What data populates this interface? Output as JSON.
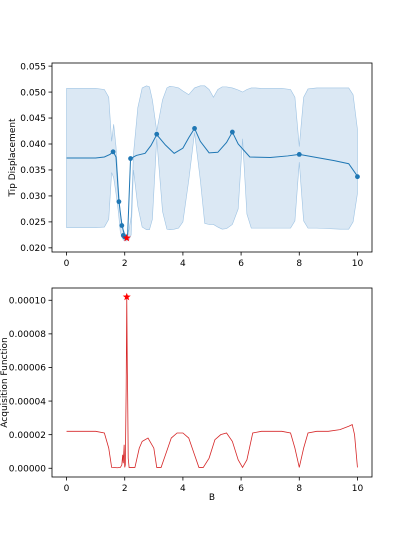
{
  "chart_data": [
    {
      "type": "line",
      "ylabel": "Tip Displacement",
      "xlim": [
        -0.5,
        10.5
      ],
      "ylim": [
        0.0192,
        0.0556
      ],
      "xticks": [
        "0",
        "2",
        "4",
        "6",
        "8",
        "10"
      ],
      "yticks": [
        "0.020",
        "0.025",
        "0.030",
        "0.035",
        "0.040",
        "0.045",
        "0.050",
        "0.055"
      ],
      "colors": {
        "mean_line": "#1f77b4",
        "band_fill": "#cfe0f0",
        "observations": "#1f77b4",
        "best_marker": "#ff0000"
      },
      "mean_curve": {
        "x": [
          0,
          1,
          1.3,
          1.5,
          1.6,
          1.7,
          1.8,
          1.9,
          2.0,
          2.05,
          2.1,
          2.2,
          2.4,
          2.7,
          2.9,
          3.1,
          3.4,
          3.7,
          4.0,
          4.2,
          4.4,
          4.6,
          4.9,
          5.2,
          5.5,
          5.7,
          5.9,
          6.3,
          7.0,
          7.6,
          8.0,
          8.5,
          9.2,
          9.7,
          10
        ],
        "y": [
          0.0373,
          0.0373,
          0.0375,
          0.038,
          0.0386,
          0.0375,
          0.029,
          0.0245,
          0.0222,
          0.022,
          0.0225,
          0.0372,
          0.0378,
          0.0382,
          0.0397,
          0.0418,
          0.0398,
          0.0382,
          0.0392,
          0.0412,
          0.043,
          0.0405,
          0.0383,
          0.0384,
          0.0403,
          0.0423,
          0.04,
          0.0375,
          0.0374,
          0.0377,
          0.038,
          0.0375,
          0.0368,
          0.0362,
          0.0338
        ]
      },
      "uncertainty_band": {
        "x": [
          0,
          1.0,
          1.3,
          1.45,
          1.55,
          1.62,
          1.7,
          1.78,
          1.85,
          1.95,
          2.05,
          2.15,
          2.22,
          2.3,
          2.45,
          2.6,
          2.75,
          2.85,
          2.95,
          3.1,
          3.3,
          3.45,
          3.55,
          3.7,
          3.85,
          4.0,
          4.2,
          4.4,
          4.6,
          4.75,
          4.9,
          5.05,
          5.2,
          5.35,
          5.5,
          5.7,
          5.9,
          6.05,
          6.2,
          6.35,
          6.5,
          6.7,
          7.0,
          7.4,
          7.7,
          7.85,
          8.0,
          8.15,
          8.3,
          8.6,
          9.0,
          9.4,
          9.7,
          9.85,
          10
        ],
        "upper": [
          0.0507,
          0.0507,
          0.0505,
          0.049,
          0.0405,
          0.0438,
          0.0395,
          0.032,
          0.0265,
          0.0235,
          0.0222,
          0.0235,
          0.026,
          0.038,
          0.047,
          0.0508,
          0.0512,
          0.051,
          0.0485,
          0.0425,
          0.0485,
          0.0508,
          0.0511,
          0.051,
          0.0508,
          0.0502,
          0.0495,
          0.0508,
          0.0512,
          0.0512,
          0.0505,
          0.049,
          0.0505,
          0.051,
          0.051,
          0.0508,
          0.0504,
          0.05,
          0.0505,
          0.0508,
          0.0508,
          0.0507,
          0.0507,
          0.0507,
          0.0505,
          0.049,
          0.0395,
          0.049,
          0.0506,
          0.0508,
          0.0508,
          0.0508,
          0.0508,
          0.0495,
          0.0428
        ],
        "lower": [
          0.0239,
          0.0239,
          0.024,
          0.0255,
          0.0345,
          0.0335,
          0.0305,
          0.027,
          0.023,
          0.0215,
          0.0213,
          0.0216,
          0.0225,
          0.035,
          0.028,
          0.024,
          0.0235,
          0.0235,
          0.0255,
          0.041,
          0.027,
          0.0236,
          0.0235,
          0.0236,
          0.0238,
          0.025,
          0.033,
          0.0422,
          0.033,
          0.0247,
          0.0245,
          0.0245,
          0.024,
          0.0236,
          0.0237,
          0.0245,
          0.0275,
          0.041,
          0.0265,
          0.0238,
          0.0238,
          0.0238,
          0.0238,
          0.0238,
          0.0238,
          0.0252,
          0.0365,
          0.0252,
          0.0238,
          0.0238,
          0.0237,
          0.0236,
          0.0236,
          0.025,
          0.0305
        ]
      },
      "observations": {
        "x": [
          1.6,
          1.8,
          1.9,
          1.95,
          2.0,
          2.2,
          3.1,
          4.4,
          5.7,
          8.0,
          10.0
        ],
        "y": [
          0.0385,
          0.0289,
          0.0243,
          0.0224,
          0.0221,
          0.0372,
          0.0419,
          0.043,
          0.0423,
          0.038,
          0.0337
        ]
      },
      "best_point": {
        "x": 2.07,
        "y": 0.0219
      }
    },
    {
      "type": "line",
      "xlabel": "B",
      "ylabel": "Acquisition Function",
      "xlim": [
        -0.5,
        10.5
      ],
      "ylim": [
        -5.2e-06,
        0.0001073
      ],
      "xticks": [
        "0",
        "2",
        "4",
        "6",
        "8",
        "10"
      ],
      "yticks": [
        "0.00000",
        "0.00002",
        "0.00004",
        "0.00006",
        "0.00008",
        "0.00010"
      ],
      "colors": {
        "line": "#d62728",
        "best_marker": "#ff0000"
      },
      "series": {
        "x": [
          0,
          1.0,
          1.3,
          1.45,
          1.55,
          1.75,
          1.85,
          1.9,
          1.93,
          1.95,
          1.98,
          2.0,
          2.02,
          2.05,
          2.07,
          2.09,
          2.1,
          2.12,
          2.15,
          2.2,
          2.35,
          2.5,
          2.6,
          2.8,
          3.0,
          3.1,
          3.25,
          3.4,
          3.6,
          3.8,
          4.0,
          4.2,
          4.4,
          4.55,
          4.7,
          4.9,
          5.1,
          5.3,
          5.5,
          5.7,
          5.9,
          6.05,
          6.2,
          6.4,
          6.7,
          7.0,
          7.4,
          7.7,
          7.85,
          8.0,
          8.15,
          8.3,
          8.6,
          9.0,
          9.4,
          9.7,
          9.82,
          9.9,
          10.0
        ],
        "y": [
          2.2e-05,
          2.2e-05,
          2.1e-05,
          1.2e-05,
          5e-07,
          3e-07,
          5e-07,
          2e-06,
          8e-06,
          3e-06,
          1.4e-05,
          5e-07,
          2e-06,
          4.8e-05,
          0.000102,
          5.7e-05,
          4.5e-05,
          6e-06,
          5e-07,
          5e-07,
          5e-07,
          1.2e-05,
          1.6e-05,
          1.8e-05,
          1.2e-05,
          5e-07,
          5e-07,
          8e-06,
          1.8e-05,
          2.1e-05,
          2.1e-05,
          1.8e-05,
          8e-06,
          5e-07,
          5e-07,
          6e-06,
          1.7e-05,
          2e-05,
          2.1e-05,
          1.6e-05,
          5e-06,
          5e-07,
          5e-06,
          2.1e-05,
          2.2e-05,
          2.2e-05,
          2.2e-05,
          2.1e-05,
          1.2e-05,
          5e-07,
          1.2e-05,
          2.1e-05,
          2.2e-05,
          2.2e-05,
          2.3e-05,
          2.5e-05,
          2.6e-05,
          2e-05,
          5e-07
        ]
      },
      "best_point": {
        "x": 2.07,
        "y": 0.000102
      }
    }
  ]
}
